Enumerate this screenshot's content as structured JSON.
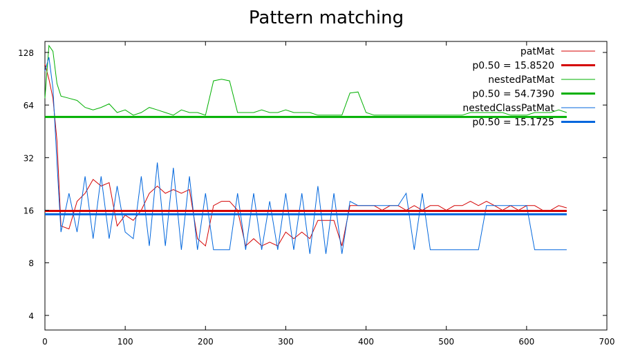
{
  "chart_data": {
    "type": "line",
    "title": "Pattern matching",
    "xlabel": "",
    "ylabel": "",
    "xlim": [
      0,
      700
    ],
    "ylim": [
      3.3,
      148
    ],
    "y_scale": "log2",
    "x_ticks": [
      0,
      100,
      200,
      300,
      400,
      500,
      600,
      700
    ],
    "x_tick_labels": [
      "0",
      "100",
      "200",
      "300",
      "400",
      "500",
      "600",
      "700"
    ],
    "y_ticks": [
      4,
      8,
      16,
      32,
      64,
      128
    ],
    "y_tick_labels": [
      "4",
      "8",
      "16",
      "32",
      "64",
      "128"
    ],
    "grid": false,
    "legend_position": "top-right",
    "series": [
      {
        "name": "patMat",
        "color": "#d40000",
        "x": [
          0,
          5,
          10,
          15,
          20,
          30,
          40,
          50,
          60,
          70,
          80,
          90,
          100,
          110,
          120,
          130,
          140,
          150,
          160,
          170,
          180,
          190,
          200,
          210,
          220,
          230,
          240,
          250,
          260,
          270,
          280,
          290,
          300,
          310,
          320,
          330,
          340,
          350,
          360,
          370,
          380,
          390,
          400,
          410,
          420,
          430,
          440,
          450,
          460,
          470,
          480,
          490,
          500,
          510,
          520,
          530,
          540,
          550,
          560,
          570,
          580,
          590,
          600,
          610,
          620,
          630,
          640,
          650
        ],
        "y": [
          110,
          90,
          70,
          40,
          13,
          12.5,
          18,
          20,
          24,
          22,
          23,
          13,
          15,
          14,
          16,
          20,
          22,
          20,
          21,
          20,
          21,
          11,
          10,
          17,
          18,
          18,
          16,
          10,
          11,
          10,
          10.5,
          10,
          12,
          11,
          12,
          11,
          14,
          14,
          14,
          10,
          17,
          17,
          17,
          17,
          16,
          17,
          17,
          16,
          17,
          16,
          17,
          17,
          16,
          17,
          17,
          18,
          17,
          18,
          17,
          16,
          17,
          16,
          17,
          17,
          16,
          16,
          17,
          16.5
        ]
      },
      {
        "name": "nestedPatMat",
        "color": "#00b000",
        "x": [
          0,
          5,
          10,
          15,
          20,
          30,
          40,
          50,
          60,
          70,
          80,
          90,
          100,
          110,
          120,
          130,
          140,
          150,
          160,
          170,
          180,
          190,
          200,
          210,
          220,
          230,
          240,
          250,
          260,
          270,
          280,
          290,
          300,
          310,
          320,
          330,
          340,
          350,
          360,
          370,
          380,
          390,
          400,
          410,
          420,
          430,
          440,
          450,
          460,
          470,
          480,
          490,
          500,
          510,
          520,
          530,
          540,
          550,
          560,
          570,
          580,
          590,
          600,
          610,
          620,
          630,
          640,
          650
        ],
        "y": [
          70,
          140,
          130,
          85,
          72,
          70,
          68,
          62,
          60,
          62,
          65,
          58,
          60,
          56,
          58,
          62,
          60,
          58,
          56,
          60,
          58,
          58,
          56,
          88,
          90,
          88,
          58,
          58,
          58,
          60,
          58,
          58,
          60,
          58,
          58,
          58,
          56,
          56,
          56,
          56,
          75,
          76,
          58,
          56,
          56,
          56,
          56,
          56,
          56,
          56,
          56,
          56,
          56,
          56,
          56,
          58,
          58,
          58,
          58,
          58,
          56,
          56,
          56,
          58,
          58,
          58,
          60,
          58
        ]
      },
      {
        "name": "nestedClassPatMat",
        "color": "#0066dd",
        "x": [
          0,
          5,
          10,
          15,
          20,
          30,
          40,
          50,
          60,
          70,
          80,
          90,
          100,
          110,
          120,
          130,
          140,
          150,
          160,
          170,
          180,
          190,
          200,
          210,
          220,
          230,
          240,
          250,
          260,
          270,
          280,
          290,
          300,
          310,
          320,
          330,
          340,
          350,
          360,
          370,
          380,
          390,
          400,
          410,
          420,
          430,
          440,
          450,
          460,
          470,
          480,
          490,
          500,
          510,
          520,
          530,
          540,
          550,
          560,
          570,
          580,
          590,
          600,
          610,
          620,
          630,
          640,
          650
        ],
        "y": [
          100,
          120,
          80,
          30,
          12,
          20,
          12,
          25,
          11,
          25,
          11,
          22,
          12,
          11,
          25,
          10,
          30,
          10,
          28,
          9.5,
          25,
          9.5,
          20,
          9.5,
          9.5,
          9.5,
          20,
          9.5,
          20,
          9.5,
          18,
          9.5,
          20,
          9.5,
          20,
          9,
          22,
          9,
          20,
          9,
          18,
          17,
          17,
          17,
          17,
          17,
          17,
          20,
          9.5,
          20,
          9.5,
          9.5,
          9.5,
          9.5,
          9.5,
          9.5,
          9.5,
          17,
          17,
          17,
          17,
          17,
          17,
          9.5,
          9.5,
          9.5,
          9.5,
          9.5
        ]
      },
      {
        "name": "p0.50 = 15.8520",
        "color": "#d40000",
        "hline": 15.852,
        "x_range": [
          0,
          650
        ]
      },
      {
        "name": "p0.50 = 54.7390",
        "color": "#00b000",
        "hline": 54.739,
        "x_range": [
          0,
          650
        ]
      },
      {
        "name": "p0.50 = 15.1725",
        "color": "#0066dd",
        "hline": 15.1725,
        "x_range": [
          0,
          650
        ]
      }
    ]
  }
}
